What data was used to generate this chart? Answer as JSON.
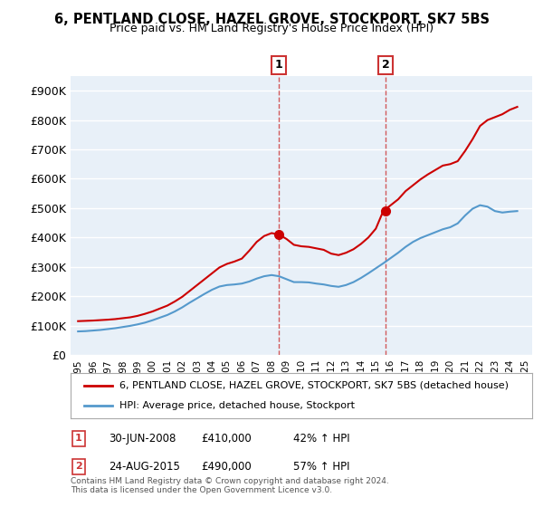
{
  "title": "6, PENTLAND CLOSE, HAZEL GROVE, STOCKPORT, SK7 5BS",
  "subtitle": "Price paid vs. HM Land Registry's House Price Index (HPI)",
  "background_color": "#ffffff",
  "plot_bg_color": "#e8f0f8",
  "grid_color": "#ffffff",
  "ylim": [
    0,
    950000
  ],
  "yticks": [
    0,
    100000,
    200000,
    300000,
    400000,
    500000,
    600000,
    700000,
    800000,
    900000
  ],
  "ytick_labels": [
    "£0",
    "£100K",
    "£200K",
    "£300K",
    "£400K",
    "£500K",
    "£600K",
    "£700K",
    "£800K",
    "£900K"
  ],
  "sale1": {
    "date_num": 2008.5,
    "price": 410000,
    "label": "1",
    "date_str": "30-JUN-2008",
    "hpi_pct": "42%"
  },
  "sale2": {
    "date_num": 2015.65,
    "price": 490000,
    "label": "2",
    "date_str": "24-AUG-2015",
    "hpi_pct": "57%"
  },
  "red_line_color": "#cc0000",
  "blue_line_color": "#5599cc",
  "sale_dot_color": "#cc0000",
  "vline_color": "#cc3333",
  "legend_line1": "6, PENTLAND CLOSE, HAZEL GROVE, STOCKPORT, SK7 5BS (detached house)",
  "legend_line2": "HPI: Average price, detached house, Stockport",
  "footnote": "Contains HM Land Registry data © Crown copyright and database right 2024.\nThis data is licensed under the Open Government Licence v3.0.",
  "red_data": {
    "years": [
      1995,
      1995.5,
      1996,
      1996.5,
      1997,
      1997.5,
      1998,
      1998.5,
      1999,
      1999.5,
      2000,
      2000.5,
      2001,
      2001.5,
      2002,
      2002.5,
      2003,
      2003.5,
      2004,
      2004.5,
      2005,
      2005.5,
      2006,
      2006.5,
      2007,
      2007.5,
      2008,
      2008.5,
      2009,
      2009.5,
      2010,
      2010.5,
      2011,
      2011.5,
      2012,
      2012.5,
      2013,
      2013.5,
      2014,
      2014.5,
      2015,
      2015.5,
      2016,
      2016.5,
      2017,
      2017.5,
      2018,
      2018.5,
      2019,
      2019.5,
      2020,
      2020.5,
      2021,
      2021.5,
      2022,
      2022.5,
      2023,
      2023.5,
      2024,
      2024.5
    ],
    "values": [
      115000,
      116000,
      117000,
      118500,
      120000,
      122000,
      125000,
      128000,
      133000,
      140000,
      148000,
      158000,
      168000,
      182000,
      198000,
      218000,
      238000,
      258000,
      278000,
      298000,
      310000,
      318000,
      328000,
      355000,
      385000,
      405000,
      415000,
      410000,
      395000,
      375000,
      370000,
      368000,
      363000,
      358000,
      345000,
      340000,
      348000,
      360000,
      378000,
      400000,
      430000,
      490000,
      510000,
      530000,
      558000,
      578000,
      598000,
      615000,
      630000,
      645000,
      650000,
      660000,
      695000,
      735000,
      780000,
      800000,
      810000,
      820000,
      835000,
      845000
    ]
  },
  "blue_data": {
    "years": [
      1995,
      1995.5,
      1996,
      1996.5,
      1997,
      1997.5,
      1998,
      1998.5,
      1999,
      1999.5,
      2000,
      2000.5,
      2001,
      2001.5,
      2002,
      2002.5,
      2003,
      2003.5,
      2004,
      2004.5,
      2005,
      2005.5,
      2006,
      2006.5,
      2007,
      2007.5,
      2008,
      2008.5,
      2009,
      2009.5,
      2010,
      2010.5,
      2011,
      2011.5,
      2012,
      2012.5,
      2013,
      2013.5,
      2014,
      2014.5,
      2015,
      2015.5,
      2016,
      2016.5,
      2017,
      2017.5,
      2018,
      2018.5,
      2019,
      2019.5,
      2020,
      2020.5,
      2021,
      2021.5,
      2022,
      2022.5,
      2023,
      2023.5,
      2024,
      2024.5
    ],
    "values": [
      80000,
      81000,
      83000,
      85000,
      88000,
      91000,
      95000,
      99000,
      104000,
      110000,
      118000,
      127000,
      136000,
      148000,
      162000,
      178000,
      193000,
      208000,
      222000,
      233000,
      238000,
      240000,
      243000,
      250000,
      260000,
      268000,
      272000,
      268000,
      258000,
      248000,
      248000,
      247000,
      243000,
      240000,
      235000,
      232000,
      238000,
      248000,
      262000,
      278000,
      295000,
      312000,
      330000,
      348000,
      368000,
      385000,
      398000,
      408000,
      418000,
      428000,
      435000,
      448000,
      475000,
      498000,
      510000,
      505000,
      490000,
      485000,
      488000,
      490000
    ]
  }
}
